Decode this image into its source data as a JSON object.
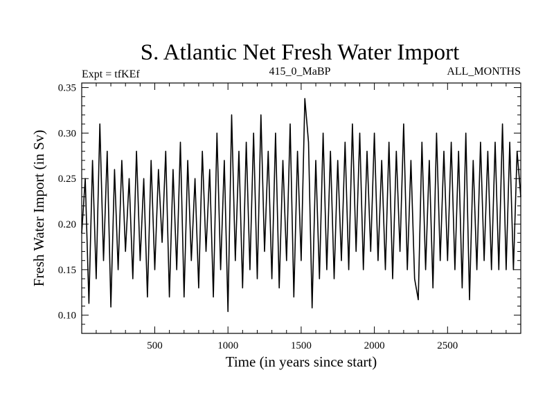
{
  "chart_data": {
    "type": "line",
    "title": "S. Atlantic Net Fresh Water Import",
    "subtitle_left": "Expt = tfKEf",
    "subtitle_center": "415_0_MaBP",
    "subtitle_right": "ALL_MONTHS",
    "xlabel": "Time (in years since start)",
    "ylabel": "Fresh Water Import (in Sv)",
    "xlim": [
      1,
      3000
    ],
    "ylim": [
      0.08,
      0.355
    ],
    "xticks": [
      500,
      1000,
      1500,
      2000,
      2500
    ],
    "xtick_labels": [
      "500",
      "1000",
      "1500",
      "2000",
      "2500"
    ],
    "yticks": [
      0.1,
      0.15,
      0.2,
      0.25,
      0.3,
      0.35
    ],
    "ytick_labels": [
      "0.10",
      "0.15",
      "0.20",
      "0.25",
      "0.30",
      "0.35"
    ],
    "grid": false,
    "series": [
      {
        "x": [
          1,
          25,
          50,
          75,
          100,
          125,
          150,
          175,
          200,
          225,
          250,
          275,
          300,
          325,
          350,
          375,
          400,
          425,
          450,
          475,
          500,
          525,
          550,
          575,
          600,
          625,
          650,
          675,
          700,
          725,
          750,
          775,
          800,
          825,
          850,
          875,
          900,
          925,
          950,
          975,
          1000,
          1025,
          1050,
          1075,
          1100,
          1125,
          1150,
          1175,
          1200,
          1225,
          1250,
          1275,
          1300,
          1325,
          1350,
          1375,
          1400,
          1425,
          1450,
          1475,
          1500,
          1525,
          1550,
          1575,
          1600,
          1625,
          1650,
          1675,
          1700,
          1725,
          1750,
          1775,
          1800,
          1825,
          1850,
          1875,
          1900,
          1925,
          1950,
          1975,
          2000,
          2025,
          2050,
          2075,
          2100,
          2125,
          2150,
          2175,
          2200,
          2225,
          2250,
          2275,
          2300,
          2325,
          2350,
          2375,
          2400,
          2425,
          2450,
          2475,
          2500,
          2525,
          2550,
          2575,
          2600,
          2625,
          2650,
          2675,
          2700,
          2725,
          2750,
          2775,
          2800,
          2825,
          2850,
          2875,
          2900,
          2925,
          2950,
          2975,
          3000
        ],
        "y": [
          0.19,
          0.25,
          0.113,
          0.27,
          0.14,
          0.31,
          0.16,
          0.28,
          0.109,
          0.26,
          0.15,
          0.27,
          0.17,
          0.25,
          0.14,
          0.28,
          0.16,
          0.25,
          0.12,
          0.27,
          0.15,
          0.26,
          0.18,
          0.28,
          0.12,
          0.26,
          0.15,
          0.29,
          0.12,
          0.27,
          0.16,
          0.25,
          0.13,
          0.28,
          0.17,
          0.26,
          0.12,
          0.3,
          0.15,
          0.27,
          0.104,
          0.32,
          0.16,
          0.28,
          0.13,
          0.29,
          0.15,
          0.3,
          0.14,
          0.32,
          0.17,
          0.28,
          0.14,
          0.3,
          0.13,
          0.27,
          0.16,
          0.31,
          0.12,
          0.28,
          0.16,
          0.338,
          0.29,
          0.108,
          0.27,
          0.14,
          0.3,
          0.15,
          0.28,
          0.14,
          0.27,
          0.16,
          0.29,
          0.15,
          0.31,
          0.17,
          0.3,
          0.15,
          0.28,
          0.17,
          0.3,
          0.16,
          0.27,
          0.15,
          0.29,
          0.14,
          0.28,
          0.17,
          0.31,
          0.15,
          0.27,
          0.14,
          0.117,
          0.29,
          0.15,
          0.27,
          0.13,
          0.3,
          0.16,
          0.28,
          0.16,
          0.29,
          0.15,
          0.28,
          0.13,
          0.3,
          0.117,
          0.27,
          0.15,
          0.29,
          0.16,
          0.28,
          0.15,
          0.29,
          0.15,
          0.31,
          0.15,
          0.29,
          0.15,
          0.28,
          0.23
        ]
      }
    ]
  }
}
